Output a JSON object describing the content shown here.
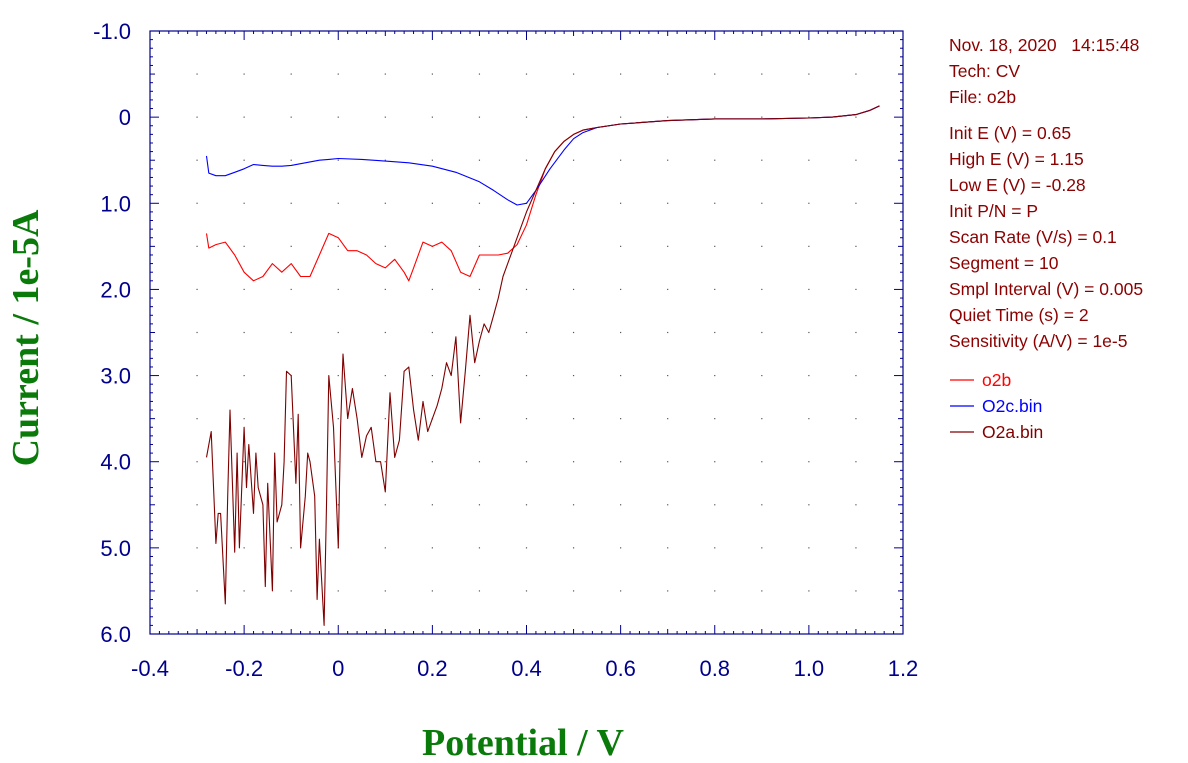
{
  "info": {
    "datetime": "Nov. 18, 2020   14:15:48",
    "tech": "Tech: CV",
    "file": "File: o2b",
    "params": [
      "Init E (V) = 0.65",
      "High E (V) = 1.15",
      "Low E (V) = -0.28",
      "Init P/N = P",
      "Scan Rate (V/s) = 0.1",
      "Segment = 10",
      "Smpl Interval (V) = 0.005",
      "Quiet Time (s) = 2",
      "Sensitivity (A/V) = 1e-5"
    ]
  },
  "chart_data": {
    "type": "line",
    "xlabel": "Potential / V",
    "ylabel": "Current / 1e-5A",
    "xlim": [
      -0.4,
      1.2
    ],
    "ylim": [
      6.0,
      -1.0
    ],
    "y_inverted": true,
    "x_ticks": [
      "-0.4",
      "-0.2",
      "0",
      "0.2",
      "0.4",
      "0.6",
      "0.8",
      "1.0",
      "1.2"
    ],
    "x_tick_values": [
      -0.4,
      -0.2,
      0,
      0.2,
      0.4,
      0.6,
      0.8,
      1.0,
      1.2
    ],
    "y_ticks": [
      "-1.0",
      "0",
      "1.0",
      "2.0",
      "3.0",
      "4.0",
      "5.0",
      "6.0"
    ],
    "y_tick_values": [
      -1.0,
      0,
      1.0,
      2.0,
      3.0,
      4.0,
      5.0,
      6.0
    ],
    "grid": "dotted",
    "legend": "right",
    "series": [
      {
        "name": "o2b",
        "color": "#ff0000",
        "x": [
          -0.28,
          -0.275,
          -0.26,
          -0.24,
          -0.22,
          -0.2,
          -0.18,
          -0.16,
          -0.14,
          -0.12,
          -0.1,
          -0.08,
          -0.06,
          -0.04,
          -0.02,
          0,
          0.02,
          0.04,
          0.06,
          0.08,
          0.1,
          0.12,
          0.14,
          0.15,
          0.16,
          0.18,
          0.2,
          0.22,
          0.24,
          0.26,
          0.28,
          0.3,
          0.32,
          0.34,
          0.36,
          0.38,
          0.4,
          0.42,
          0.44,
          0.46,
          0.48,
          0.5,
          0.52,
          0.55,
          0.6,
          0.7,
          0.8,
          0.9,
          1.0,
          1.05,
          1.1,
          1.13,
          1.15
        ],
        "y": [
          1.35,
          1.52,
          1.48,
          1.45,
          1.6,
          1.8,
          1.9,
          1.85,
          1.7,
          1.8,
          1.7,
          1.85,
          1.85,
          1.6,
          1.35,
          1.4,
          1.55,
          1.55,
          1.6,
          1.7,
          1.75,
          1.65,
          1.8,
          1.9,
          1.75,
          1.45,
          1.5,
          1.45,
          1.55,
          1.8,
          1.85,
          1.6,
          1.6,
          1.6,
          1.58,
          1.48,
          1.25,
          0.9,
          0.6,
          0.4,
          0.28,
          0.2,
          0.15,
          0.12,
          0.08,
          0.04,
          0.02,
          0.02,
          0.01,
          0.0,
          -0.03,
          -0.08,
          -0.13
        ]
      },
      {
        "name": "O2c.bin",
        "color": "#0000ff",
        "x": [
          -0.28,
          -0.275,
          -0.26,
          -0.24,
          -0.22,
          -0.2,
          -0.18,
          -0.16,
          -0.14,
          -0.12,
          -0.1,
          -0.08,
          -0.06,
          -0.04,
          -0.02,
          0,
          0.05,
          0.1,
          0.15,
          0.2,
          0.25,
          0.3,
          0.33,
          0.36,
          0.38,
          0.4,
          0.42,
          0.45,
          0.48,
          0.5,
          0.52,
          0.55,
          0.6,
          0.7,
          0.8,
          0.9,
          1.0,
          1.05,
          1.1,
          1.13,
          1.15
        ],
        "y": [
          0.45,
          0.65,
          0.68,
          0.68,
          0.64,
          0.6,
          0.55,
          0.56,
          0.57,
          0.57,
          0.56,
          0.54,
          0.52,
          0.5,
          0.49,
          0.48,
          0.49,
          0.51,
          0.53,
          0.57,
          0.64,
          0.75,
          0.85,
          0.96,
          1.02,
          1.0,
          0.85,
          0.6,
          0.38,
          0.25,
          0.18,
          0.12,
          0.08,
          0.04,
          0.02,
          0.02,
          0.01,
          0.0,
          -0.03,
          -0.08,
          -0.13
        ]
      },
      {
        "name": "O2a.bin",
        "color": "#800000",
        "x": [
          -0.28,
          -0.27,
          -0.26,
          -0.255,
          -0.25,
          -0.24,
          -0.235,
          -0.23,
          -0.22,
          -0.215,
          -0.21,
          -0.2,
          -0.195,
          -0.19,
          -0.18,
          -0.175,
          -0.17,
          -0.16,
          -0.155,
          -0.15,
          -0.14,
          -0.135,
          -0.13,
          -0.12,
          -0.115,
          -0.11,
          -0.1,
          -0.09,
          -0.085,
          -0.08,
          -0.07,
          -0.065,
          -0.06,
          -0.05,
          -0.045,
          -0.04,
          -0.03,
          -0.025,
          -0.02,
          -0.01,
          0,
          0.005,
          0.01,
          0.02,
          0.03,
          0.04,
          0.05,
          0.06,
          0.07,
          0.08,
          0.09,
          0.1,
          0.11,
          0.12,
          0.13,
          0.14,
          0.15,
          0.16,
          0.17,
          0.18,
          0.19,
          0.2,
          0.21,
          0.22,
          0.23,
          0.24,
          0.25,
          0.26,
          0.27,
          0.28,
          0.29,
          0.3,
          0.31,
          0.32,
          0.33,
          0.34,
          0.35,
          0.36,
          0.37,
          0.38,
          0.39,
          0.4,
          0.42,
          0.44,
          0.46,
          0.48,
          0.5,
          0.52,
          0.55,
          0.6,
          0.7,
          0.8,
          0.9,
          1.0,
          1.05,
          1.1,
          1.13,
          1.15
        ],
        "y": [
          3.95,
          3.65,
          4.95,
          4.6,
          4.6,
          5.65,
          4.4,
          3.4,
          5.05,
          3.9,
          5.0,
          3.6,
          4.3,
          3.8,
          4.6,
          3.9,
          4.3,
          4.5,
          5.45,
          4.25,
          5.5,
          3.9,
          4.7,
          4.5,
          4.0,
          2.95,
          3.0,
          4.25,
          3.45,
          5.0,
          4.4,
          3.9,
          4.0,
          4.4,
          5.6,
          4.9,
          5.9,
          4.5,
          3.0,
          3.6,
          5.0,
          3.6,
          2.75,
          3.5,
          3.15,
          3.5,
          3.95,
          3.7,
          3.6,
          4.0,
          4.0,
          4.35,
          3.2,
          3.95,
          3.75,
          2.95,
          2.9,
          3.4,
          3.75,
          3.3,
          3.65,
          3.5,
          3.35,
          3.15,
          2.85,
          3.0,
          2.55,
          3.55,
          2.95,
          2.3,
          2.85,
          2.6,
          2.4,
          2.5,
          2.3,
          2.1,
          1.85,
          1.7,
          1.55,
          1.4,
          1.25,
          1.1,
          0.85,
          0.6,
          0.4,
          0.28,
          0.2,
          0.15,
          0.12,
          0.08,
          0.04,
          0.02,
          0.02,
          0.01,
          0.0,
          -0.03,
          -0.08,
          -0.13
        ]
      }
    ]
  }
}
